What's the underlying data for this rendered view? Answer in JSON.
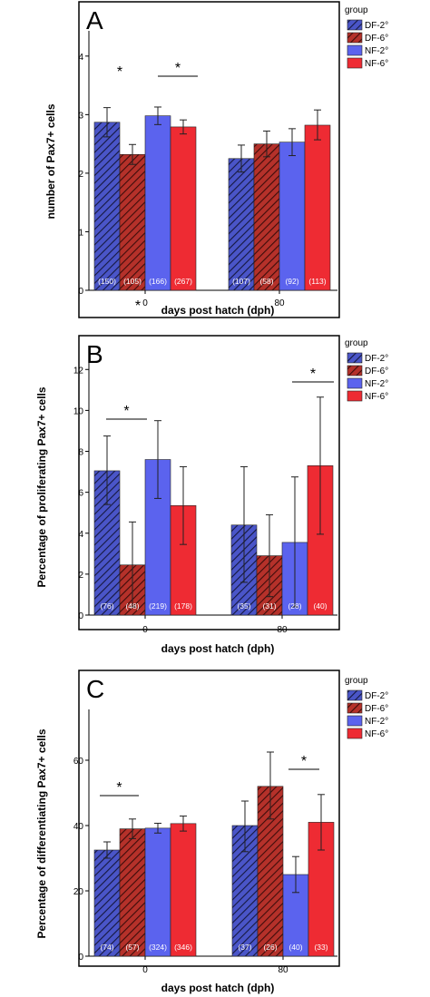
{
  "colors": {
    "df_blue": "#4a55c8",
    "df_red": "#b5312a",
    "nf_blue": "#5b63ee",
    "nf_red": "#ee2b33",
    "axis": "#000000",
    "frame": "#000000"
  },
  "chart_data": [
    {
      "type": "bar",
      "panel_label": "A",
      "xlabel": "days post hatch (dph)",
      "ylabel": "number of Pax7+ cells",
      "ylim": [
        0,
        4.4
      ],
      "yticks": [
        "0",
        "1",
        "2",
        "3",
        "4"
      ],
      "categories": [
        "0",
        "80"
      ],
      "legend_title": "group",
      "legend_position": "right",
      "series": [
        {
          "name": "DF-2°",
          "values": [
            2.87,
            2.25
          ],
          "err_low": [
            2.62,
            2.02
          ],
          "err_high": [
            3.12,
            2.48
          ],
          "n_labels": [
            "(150)",
            "(107)"
          ]
        },
        {
          "name": "DF-6°",
          "values": [
            2.32,
            2.5
          ],
          "err_low": [
            2.15,
            2.28
          ],
          "err_high": [
            2.49,
            2.72
          ],
          "n_labels": [
            "(105)",
            "(58)"
          ]
        },
        {
          "name": "NF-2°",
          "values": [
            2.98,
            2.53
          ],
          "err_low": [
            2.83,
            2.3
          ],
          "err_high": [
            3.13,
            2.76
          ],
          "n_labels": [
            "(166)",
            "(92)"
          ]
        },
        {
          "name": "NF-6°",
          "values": [
            2.79,
            2.82
          ],
          "err_low": [
            2.67,
            2.57
          ],
          "err_high": [
            2.91,
            3.08
          ],
          "n_labels": [
            "(267)",
            "(113)"
          ]
        }
      ],
      "annotations": [
        {
          "text": "*",
          "note": "above DF-6° at 0"
        },
        {
          "text": "*",
          "note": "bracket NF-2° vs NF-6° at 0"
        },
        {
          "text": "*",
          "note": "below x tick 0"
        }
      ]
    },
    {
      "type": "bar",
      "panel_label": "B",
      "xlabel": "days post hatch (dph)",
      "ylabel": "Percentage of proliferating Pax7+ cells",
      "ylim": [
        0,
        12.5
      ],
      "yticks": [
        "0",
        "2",
        "4",
        "6",
        "8",
        "10",
        "12"
      ],
      "categories": [
        "0",
        "80"
      ],
      "legend_title": "group",
      "legend_position": "right",
      "series": [
        {
          "name": "DF-2°",
          "values": [
            7.05,
            4.4
          ],
          "err_low": [
            5.4,
            1.6
          ],
          "err_high": [
            8.75,
            7.25
          ],
          "n_labels": [
            "(76)",
            "(35)"
          ]
        },
        {
          "name": "DF-6°",
          "values": [
            2.45,
            2.9
          ],
          "err_low": [
            0.4,
            0.9
          ],
          "err_high": [
            4.55,
            4.9
          ],
          "n_labels": [
            "(48)",
            "(31)"
          ]
        },
        {
          "name": "NF-2°",
          "values": [
            7.6,
            3.55
          ],
          "err_low": [
            5.7,
            0.4
          ],
          "err_high": [
            9.5,
            6.75
          ],
          "n_labels": [
            "(219)",
            "(28)"
          ]
        },
        {
          "name": "NF-6°",
          "values": [
            5.35,
            7.3
          ],
          "err_low": [
            3.45,
            3.95
          ],
          "err_high": [
            7.25,
            10.65
          ],
          "n_labels": [
            "(178)",
            "(40)"
          ]
        }
      ],
      "annotations": [
        {
          "text": "*",
          "note": "bracket DF-2° vs DF-6° at 0"
        },
        {
          "text": "*",
          "note": "bracket NF-2° vs NF-6° at 80"
        }
      ]
    },
    {
      "type": "bar",
      "panel_label": "C",
      "xlabel": "days post hatch (dph)",
      "ylabel": "Percentage of differentiating Pax7+ cells",
      "ylim": [
        0,
        75
      ],
      "yticks": [
        "0",
        "20",
        "40",
        "60"
      ],
      "categories": [
        "0",
        "80"
      ],
      "legend_title": "group",
      "legend_position": "right",
      "series": [
        {
          "name": "DF-2°",
          "values": [
            32.5,
            40.0
          ],
          "err_low": [
            30.0,
            32.0
          ],
          "err_high": [
            35.0,
            47.5
          ],
          "n_labels": [
            "(74)",
            "(37)"
          ]
        },
        {
          "name": "DF-6°",
          "values": [
            39.0,
            52.0
          ],
          "err_low": [
            36.0,
            42.0
          ],
          "err_high": [
            42.0,
            62.5
          ],
          "n_labels": [
            "(57)",
            "(26)"
          ]
        },
        {
          "name": "NF-2°",
          "values": [
            39.2,
            25.0
          ],
          "err_low": [
            37.7,
            19.5
          ],
          "err_high": [
            40.7,
            30.5
          ],
          "n_labels": [
            "(324)",
            "(40)"
          ]
        },
        {
          "name": "NF-6°",
          "values": [
            40.6,
            41.0
          ],
          "err_low": [
            38.3,
            32.5
          ],
          "err_high": [
            42.9,
            49.5
          ],
          "n_labels": [
            "(346)",
            "(33)"
          ]
        }
      ],
      "annotations": [
        {
          "text": "*",
          "note": "bracket DF-2° vs DF-6° at 0"
        },
        {
          "text": "*",
          "note": "bracket NF-2° vs NF-6° at 80"
        }
      ]
    }
  ]
}
